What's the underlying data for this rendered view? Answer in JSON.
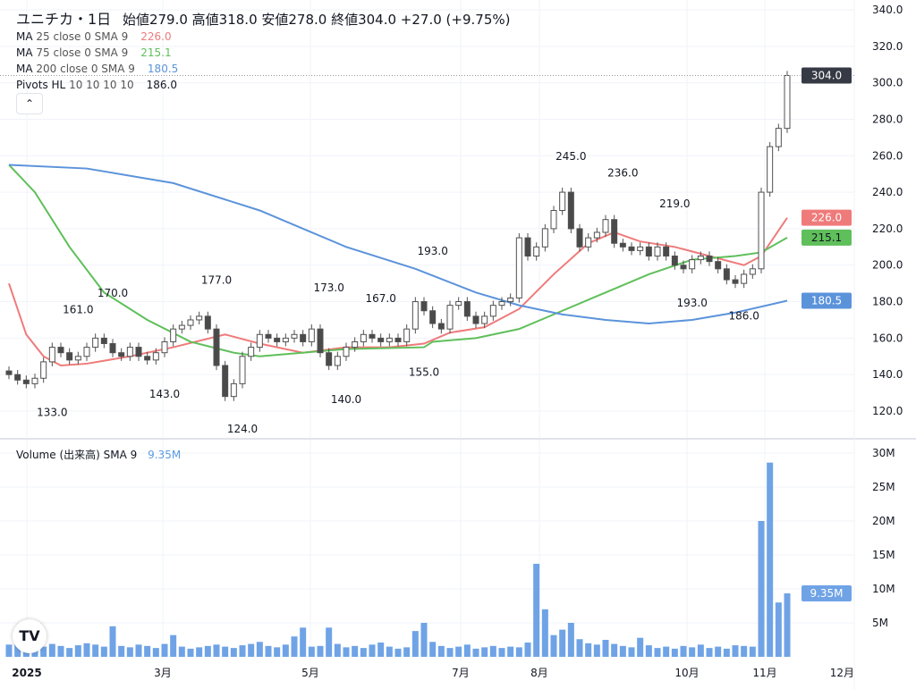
{
  "header": {
    "symbol": "ユニチカ・1日",
    "ohlc": "始値279.0  高値318.0  安値278.0  終値304.0  +27.0 (+9.75%)"
  },
  "indicators": [
    {
      "label": "MA",
      "params": "25 close 0 SMA 9",
      "value": "226.0",
      "color": "#ef7a7a"
    },
    {
      "label": "MA",
      "params": "75 close 0 SMA 9",
      "value": "215.1",
      "color": "#5fbf5a"
    },
    {
      "label": "MA",
      "params": "200 close 0 SMA 9",
      "value": "180.5",
      "color": "#5b93db"
    },
    {
      "label": "Pivots HL",
      "params": "10 10 10 10",
      "value": "186.0",
      "color": "#131722"
    }
  ],
  "collapse_icon": "chevron-up-icon",
  "volume_legend": {
    "label": "Volume (出来高)",
    "params": "SMA 9",
    "value": "9.35M"
  },
  "logo": "TV",
  "chart_data": {
    "type": "candlestick",
    "price_axis": {
      "ylim": [
        120,
        340
      ],
      "ticks": [
        "120.0",
        "140.0",
        "160.0",
        "180.0",
        "200.0",
        "220.0",
        "240.0",
        "260.0",
        "280.0",
        "300.0",
        "320.0",
        "340.0"
      ]
    },
    "time_labels": [
      "2025",
      "3月",
      "5月",
      "7月",
      "8月",
      "10月",
      "11月",
      "12月"
    ],
    "close": [
      140,
      137,
      135,
      138,
      147,
      155,
      152,
      148,
      150,
      155,
      160,
      157,
      152,
      150,
      155,
      150,
      148,
      152,
      158,
      165,
      167,
      170,
      172,
      165,
      145,
      128,
      135,
      150,
      155,
      162,
      160,
      158,
      160,
      162,
      158,
      165,
      152,
      145,
      150,
      155,
      158,
      162,
      160,
      158,
      160,
      158,
      165,
      180,
      175,
      168,
      165,
      178,
      180,
      172,
      168,
      172,
      178,
      180,
      182,
      215,
      205,
      210,
      220,
      230,
      240,
      220,
      210,
      215,
      218,
      225,
      212,
      210,
      208,
      210,
      205,
      210,
      205,
      200,
      198,
      203,
      205,
      202,
      198,
      192,
      190,
      195,
      198,
      240,
      265,
      275,
      304
    ],
    "last_price": {
      "value": "304.0",
      "color": "#363a45"
    },
    "moving_averages": [
      {
        "name": "MA 25",
        "value_label": "226.0",
        "color": "#ef7a7a",
        "points": [
          [
            0,
            190
          ],
          [
            2,
            162
          ],
          [
            4,
            150
          ],
          [
            6,
            145
          ],
          [
            9,
            146
          ],
          [
            14,
            150
          ],
          [
            19,
            155
          ],
          [
            25,
            162
          ],
          [
            29,
            157
          ],
          [
            34,
            152
          ],
          [
            39,
            155
          ],
          [
            44,
            155
          ],
          [
            48,
            157
          ],
          [
            51,
            163
          ],
          [
            55,
            166
          ],
          [
            59,
            176
          ],
          [
            63,
            195
          ],
          [
            67,
            212
          ],
          [
            70,
            218
          ],
          [
            73,
            213
          ],
          [
            77,
            210
          ],
          [
            81,
            205
          ],
          [
            85,
            200
          ],
          [
            87,
            205
          ],
          [
            90,
            226
          ]
        ]
      },
      {
        "name": "MA 75",
        "value_label": "215.1",
        "color": "#5fbf5a",
        "points": [
          [
            0,
            255
          ],
          [
            3,
            240
          ],
          [
            7,
            210
          ],
          [
            11,
            185
          ],
          [
            16,
            170
          ],
          [
            21,
            158
          ],
          [
            26,
            152
          ],
          [
            29,
            150
          ],
          [
            39,
            154
          ],
          [
            48,
            155
          ],
          [
            49,
            158
          ],
          [
            54,
            160
          ],
          [
            59,
            165
          ],
          [
            64,
            175
          ],
          [
            69,
            185
          ],
          [
            74,
            195
          ],
          [
            79,
            203
          ],
          [
            84,
            205
          ],
          [
            87,
            207
          ],
          [
            90,
            215.1
          ]
        ]
      },
      {
        "name": "MA 200",
        "value_label": "180.5",
        "color": "#5b93db",
        "points": [
          [
            0,
            255
          ],
          [
            9,
            253
          ],
          [
            19,
            245
          ],
          [
            29,
            230
          ],
          [
            39,
            210
          ],
          [
            47,
            198
          ],
          [
            54,
            185
          ],
          [
            59,
            178
          ],
          [
            64,
            173
          ],
          [
            69,
            170
          ],
          [
            74,
            168
          ],
          [
            79,
            170
          ],
          [
            84,
            174
          ],
          [
            90,
            180.5
          ]
        ]
      }
    ],
    "pivots": [
      {
        "type": "low",
        "index": 5,
        "label": "133.0",
        "price": 133
      },
      {
        "type": "high",
        "index": 8,
        "label": "161.0",
        "price": 161
      },
      {
        "type": "high",
        "index": 12,
        "label": "170.0",
        "price": 170
      },
      {
        "type": "low",
        "index": 18,
        "label": "143.0",
        "price": 143
      },
      {
        "type": "high",
        "index": 24,
        "label": "177.0",
        "price": 177
      },
      {
        "type": "low",
        "index": 27,
        "label": "124.0",
        "price": 124
      },
      {
        "type": "high",
        "index": 37,
        "label": "173.0",
        "price": 173
      },
      {
        "type": "low",
        "index": 39,
        "label": "140.0",
        "price": 140
      },
      {
        "type": "high",
        "index": 43,
        "label": "167.0",
        "price": 167
      },
      {
        "type": "low",
        "index": 48,
        "label": "155.0",
        "price": 155
      },
      {
        "type": "high",
        "index": 49,
        "label": "193.0",
        "price": 193
      },
      {
        "type": "high",
        "index": 65,
        "label": "245.0",
        "price": 245
      },
      {
        "type": "high",
        "index": 71,
        "label": "236.0",
        "price": 236
      },
      {
        "type": "high",
        "index": 77,
        "label": "219.0",
        "price": 219
      },
      {
        "type": "low",
        "index": 79,
        "label": "193.0",
        "price": 193
      },
      {
        "type": "low",
        "index": 85,
        "label": "186.0",
        "price": 186
      }
    ],
    "volume": {
      "unit": "M",
      "ylim": [
        0,
        30
      ],
      "ticks": [
        "5M",
        "10M",
        "15M",
        "20M",
        "25M",
        "30M"
      ],
      "last_label": "9.35M",
      "color": "#6fa3e6",
      "values": [
        1.8,
        2.2,
        1.4,
        1.2,
        1.5,
        1.9,
        1.6,
        1.3,
        1.7,
        2.0,
        1.8,
        1.5,
        4.5,
        1.6,
        1.4,
        1.8,
        1.6,
        1.3,
        1.9,
        3.2,
        1.5,
        1.2,
        1.4,
        1.6,
        1.8,
        1.5,
        1.3,
        1.7,
        1.9,
        2.2,
        1.6,
        1.4,
        1.8,
        3.0,
        4.3,
        1.5,
        1.6,
        4.3,
        1.9,
        1.4,
        1.6,
        1.3,
        1.8,
        2.1,
        1.5,
        1.2,
        1.4,
        3.8,
        5.0,
        2.2,
        1.6,
        1.3,
        1.5,
        1.8,
        1.2,
        1.4,
        1.6,
        1.3,
        1.5,
        1.4,
        2.1,
        13.7,
        7.0,
        3.2,
        4.0,
        5.0,
        2.6,
        2.0,
        1.8,
        2.5,
        1.9,
        1.6,
        1.4,
        2.8,
        1.7,
        1.3,
        1.5,
        1.2,
        1.6,
        1.4,
        1.8,
        1.3,
        1.5,
        1.2,
        1.7,
        1.6,
        1.5,
        20.0,
        28.6,
        8.0,
        9.35
      ]
    }
  }
}
